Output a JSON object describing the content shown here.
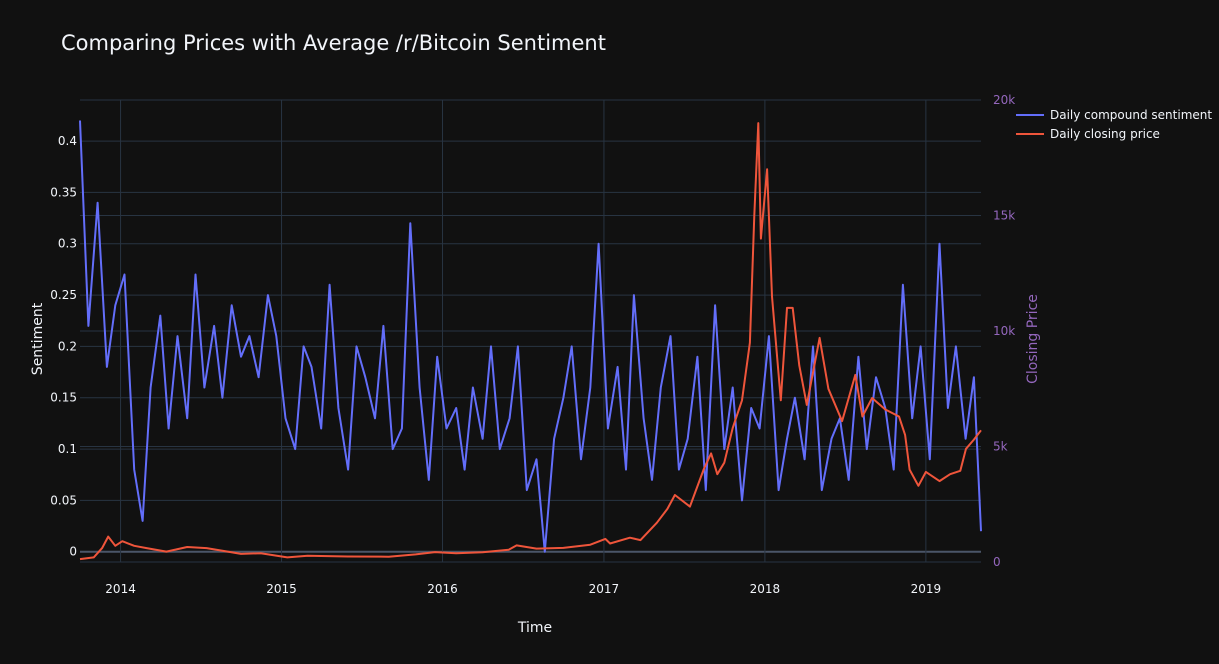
{
  "chart_data": {
    "type": "line",
    "title": "Comparing Prices with Average /r/Bitcoin Sentiment",
    "xlabel": "Time",
    "ylabel": "Sentiment",
    "y2label": "Closing Price",
    "x_range": [
      "2013-10-01",
      "2019-05-06"
    ],
    "x_ticks": [
      "2014",
      "2015",
      "2016",
      "2017",
      "2018",
      "2019"
    ],
    "ylim": [
      -0.01,
      0.44
    ],
    "y_ticks": [
      0,
      0.05,
      0.1,
      0.15,
      0.2,
      0.25,
      0.3,
      0.35,
      0.4
    ],
    "y_tick_labels": [
      "0",
      "0.05",
      "0.1",
      "0.15",
      "0.2",
      "0.25",
      "0.3",
      "0.35",
      "0.4"
    ],
    "y2lim": [
      0,
      20000
    ],
    "y2_ticks": [
      0,
      5000,
      10000,
      15000,
      20000
    ],
    "y2_tick_labels": [
      "0",
      "5k",
      "10k",
      "15k",
      "20k"
    ],
    "grid": true,
    "legend": "top-right",
    "series": [
      {
        "name": "Daily compound sentiment",
        "axis": "y",
        "color": "#636efa",
        "x": [
          "2013-10-01",
          "2013-10-20",
          "2013-11-10",
          "2013-12-01",
          "2013-12-20",
          "2014-01-10",
          "2014-02-01",
          "2014-02-20",
          "2014-03-10",
          "2014-04-01",
          "2014-04-20",
          "2014-05-10",
          "2014-06-01",
          "2014-06-20",
          "2014-07-10",
          "2014-08-01",
          "2014-08-20",
          "2014-09-10",
          "2014-10-01",
          "2014-10-20",
          "2014-11-10",
          "2014-12-01",
          "2014-12-20",
          "2015-01-10",
          "2015-02-01",
          "2015-02-20",
          "2015-03-10",
          "2015-04-01",
          "2015-04-20",
          "2015-05-10",
          "2015-06-01",
          "2015-06-20",
          "2015-07-10",
          "2015-08-01",
          "2015-08-20",
          "2015-09-10",
          "2015-10-01",
          "2015-10-20",
          "2015-11-10",
          "2015-12-01",
          "2015-12-20",
          "2016-01-10",
          "2016-02-01",
          "2016-02-20",
          "2016-03-10",
          "2016-04-01",
          "2016-04-20",
          "2016-05-10",
          "2016-06-01",
          "2016-06-20",
          "2016-07-10",
          "2016-08-01",
          "2016-08-20",
          "2016-09-10",
          "2016-10-01",
          "2016-10-20",
          "2016-11-10",
          "2016-12-01",
          "2016-12-20",
          "2017-01-10",
          "2017-02-01",
          "2017-02-20",
          "2017-03-10",
          "2017-04-01",
          "2017-04-20",
          "2017-05-10",
          "2017-06-01",
          "2017-06-20",
          "2017-07-10",
          "2017-08-01",
          "2017-08-20",
          "2017-09-10",
          "2017-10-01",
          "2017-10-20",
          "2017-11-10",
          "2017-12-01",
          "2017-12-20",
          "2018-01-10",
          "2018-02-01",
          "2018-02-20",
          "2018-03-10",
          "2018-04-01",
          "2018-04-20",
          "2018-05-10",
          "2018-06-01",
          "2018-06-20",
          "2018-07-10",
          "2018-08-01",
          "2018-08-20",
          "2018-09-10",
          "2018-10-01",
          "2018-10-20",
          "2018-11-10",
          "2018-12-01",
          "2018-12-20",
          "2019-01-10",
          "2019-02-01",
          "2019-02-20",
          "2019-03-10",
          "2019-04-01",
          "2019-04-20",
          "2019-05-06"
        ],
        "values": [
          0.42,
          0.22,
          0.34,
          0.18,
          0.24,
          0.27,
          0.08,
          0.03,
          0.16,
          0.23,
          0.12,
          0.21,
          0.13,
          0.27,
          0.16,
          0.22,
          0.15,
          0.24,
          0.19,
          0.21,
          0.17,
          0.25,
          0.21,
          0.13,
          0.1,
          0.2,
          0.18,
          0.12,
          0.26,
          0.14,
          0.08,
          0.2,
          0.17,
          0.13,
          0.22,
          0.1,
          0.12,
          0.32,
          0.16,
          0.07,
          0.19,
          0.12,
          0.14,
          0.08,
          0.16,
          0.11,
          0.2,
          0.1,
          0.13,
          0.2,
          0.06,
          0.09,
          0.0,
          0.11,
          0.15,
          0.2,
          0.09,
          0.16,
          0.3,
          0.12,
          0.18,
          0.08,
          0.25,
          0.13,
          0.07,
          0.16,
          0.21,
          0.08,
          0.11,
          0.19,
          0.06,
          0.24,
          0.1,
          0.16,
          0.05,
          0.14,
          0.12,
          0.21,
          0.06,
          0.11,
          0.15,
          0.09,
          0.2,
          0.06,
          0.11,
          0.13,
          0.07,
          0.19,
          0.1,
          0.17,
          0.14,
          0.08,
          0.26,
          0.13,
          0.2,
          0.09,
          0.3,
          0.14,
          0.2,
          0.11,
          0.17,
          0.02
        ]
      },
      {
        "name": "Daily closing price",
        "axis": "y2",
        "color": "#ef553b",
        "x": [
          "2013-10-01",
          "2013-11-01",
          "2013-11-20",
          "2013-12-04",
          "2013-12-20",
          "2014-01-05",
          "2014-02-01",
          "2014-03-01",
          "2014-04-15",
          "2014-06-01",
          "2014-07-15",
          "2014-09-01",
          "2014-10-01",
          "2014-11-15",
          "2015-01-14",
          "2015-03-01",
          "2015-06-01",
          "2015-09-01",
          "2015-11-01",
          "2015-12-15",
          "2016-02-01",
          "2016-04-01",
          "2016-05-30",
          "2016-06-17",
          "2016-08-01",
          "2016-10-01",
          "2016-12-01",
          "2017-01-04",
          "2017-01-15",
          "2017-03-01",
          "2017-03-25",
          "2017-05-01",
          "2017-05-25",
          "2017-06-11",
          "2017-07-15",
          "2017-08-15",
          "2017-09-01",
          "2017-09-15",
          "2017-10-01",
          "2017-10-20",
          "2017-11-10",
          "2017-11-28",
          "2017-12-08",
          "2017-12-17",
          "2017-12-23",
          "2018-01-06",
          "2018-01-17",
          "2018-02-06",
          "2018-02-20",
          "2018-03-05",
          "2018-03-20",
          "2018-04-06",
          "2018-05-05",
          "2018-05-25",
          "2018-06-25",
          "2018-07-25",
          "2018-08-10",
          "2018-09-01",
          "2018-10-01",
          "2018-11-01",
          "2018-11-15",
          "2018-11-25",
          "2018-12-15",
          "2019-01-01",
          "2019-02-01",
          "2019-02-25",
          "2019-03-20",
          "2019-04-02",
          "2019-04-20",
          "2019-05-06"
        ],
        "values": [
          125,
          200,
          600,
          1100,
          700,
          900,
          700,
          600,
          450,
          650,
          600,
          450,
          350,
          380,
          200,
          270,
          240,
          230,
          330,
          430,
          380,
          420,
          530,
          720,
          580,
          610,
          750,
          1000,
          800,
          1050,
          950,
          1700,
          2300,
          2900,
          2400,
          4000,
          4700,
          3800,
          4300,
          5800,
          7000,
          9500,
          15000,
          19000,
          14000,
          17000,
          11500,
          7000,
          11000,
          11000,
          8500,
          6800,
          9700,
          7500,
          6100,
          8100,
          6300,
          7100,
          6600,
          6300,
          5500,
          4000,
          3300,
          3900,
          3500,
          3800,
          3950,
          4900,
          5300,
          5700
        ]
      }
    ]
  }
}
